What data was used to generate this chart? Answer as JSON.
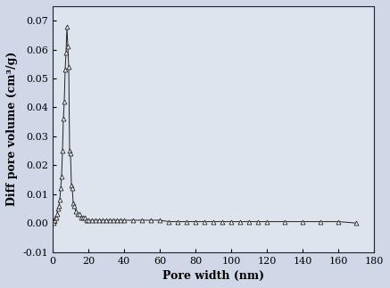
{
  "x": [
    0.5,
    1.0,
    1.5,
    2.0,
    2.5,
    3.0,
    3.5,
    4.0,
    4.5,
    5.0,
    5.5,
    6.0,
    6.5,
    7.0,
    7.5,
    8.0,
    8.5,
    9.0,
    9.5,
    10.0,
    10.5,
    11.0,
    11.5,
    12.0,
    13.0,
    14.0,
    15.0,
    16.0,
    17.0,
    18.0,
    19.0,
    20.0,
    22.0,
    24.0,
    26.0,
    28.0,
    30.0,
    32.0,
    34.0,
    36.0,
    38.0,
    40.0,
    45.0,
    50.0,
    55.0,
    60.0,
    65.0,
    70.0,
    75.0,
    80.0,
    85.0,
    90.0,
    95.0,
    100.0,
    105.0,
    110.0,
    115.0,
    120.0,
    130.0,
    140.0,
    150.0,
    160.0,
    170.0
  ],
  "y": [
    0.0,
    0.001,
    0.002,
    0.002,
    0.003,
    0.005,
    0.006,
    0.008,
    0.012,
    0.016,
    0.025,
    0.036,
    0.042,
    0.053,
    0.059,
    0.068,
    0.061,
    0.054,
    0.025,
    0.024,
    0.013,
    0.012,
    0.007,
    0.006,
    0.004,
    0.003,
    0.003,
    0.002,
    0.002,
    0.002,
    0.001,
    0.001,
    0.001,
    0.001,
    0.001,
    0.001,
    0.001,
    0.001,
    0.001,
    0.001,
    0.001,
    0.001,
    0.001,
    0.001,
    0.001,
    0.001,
    0.0005,
    0.0005,
    0.0005,
    0.0005,
    0.0005,
    0.0005,
    0.0005,
    0.0005,
    0.0005,
    0.0005,
    0.0005,
    0.0005,
    0.0005,
    0.0005,
    0.0005,
    0.0005,
    0.0
  ],
  "xlabel": "Pore width (nm)",
  "ylabel": "Diff pore volume (cm³/g)",
  "xlim": [
    0,
    180
  ],
  "ylim": [
    -0.01,
    0.075
  ],
  "xticks": [
    0,
    20,
    40,
    60,
    80,
    100,
    120,
    140,
    160,
    180
  ],
  "yticks": [
    -0.01,
    0.0,
    0.01,
    0.02,
    0.03,
    0.04,
    0.05,
    0.06,
    0.07
  ],
  "marker": "^",
  "marker_color": "white",
  "marker_edge_color": "#222222",
  "line_color": "#222222",
  "marker_size": 3.5,
  "line_width": 0.7,
  "background_color": "#d0d8e8",
  "plot_bg_color": "#dde4ee",
  "xlabel_fontsize": 9,
  "ylabel_fontsize": 9,
  "tick_fontsize": 8
}
